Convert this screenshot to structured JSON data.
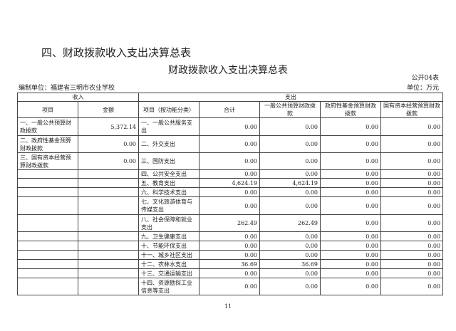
{
  "section_title": "四、财政拨款收入支出决算总表",
  "table_title": "财政拨款收入支出决算总表",
  "form_no": "公开04表",
  "org": "编制单位：福建省三明市农业学校",
  "unit": "单位：万元",
  "group_headers": {
    "income": "收入",
    "expense": "支出"
  },
  "columns": [
    "项目",
    "金额",
    "项目（按功能分类）",
    "合计",
    "一般公共预算财政拨款",
    "政府性基金预算财政拨款",
    "国有资本经营预算财政拨款"
  ],
  "rows": [
    [
      "一、一般公共预算财政拨款",
      "5,372.14",
      "一、一般公共服务支出",
      "0.00",
      "0.00",
      "0.00",
      "0.00"
    ],
    [
      "二、政府性基金预算财政拨款",
      "0.00",
      "二、外交支出",
      "0.00",
      "0.00",
      "0.00",
      "0.00"
    ],
    [
      "三、国有资本经营预算财政拨款",
      "0.00",
      "三、国防支出",
      "0.00",
      "0.00",
      "0.00",
      "0.00"
    ],
    [
      "",
      "",
      "四、公共安全支出",
      "0.00",
      "0.00",
      "0.00",
      "0.00"
    ],
    [
      "",
      "",
      "五、教育支出",
      "4,624.19",
      "4,624.19",
      "0.00",
      "0.00"
    ],
    [
      "",
      "",
      "六、科学技术支出",
      "0.00",
      "0.00",
      "0.00",
      "0.00"
    ],
    [
      "",
      "",
      "七、文化旅游体育与传媒支出",
      "0.00",
      "0.00",
      "0.00",
      "0.00"
    ],
    [
      "",
      "",
      "八、社会保障和就业支出",
      "262.49",
      "262.49",
      "0.00",
      "0.00"
    ],
    [
      "",
      "",
      "九、卫生健康支出",
      "0.00",
      "0.00",
      "0.00",
      "0.00"
    ],
    [
      "",
      "",
      "十、节能环保支出",
      "0.00",
      "0.00",
      "0.00",
      "0.00"
    ],
    [
      "",
      "",
      "十一、城乡社区支出",
      "0.00",
      "0.00",
      "0.00",
      "0.00"
    ],
    [
      "",
      "",
      "十二、农林水支出",
      "36.69",
      "36.69",
      "0.00",
      "0.00"
    ],
    [
      "",
      "",
      "十三、交通运输支出",
      "0.00",
      "0.00",
      "0.00",
      "0.00"
    ],
    [
      "",
      "",
      "十四、资源勘探工业信息等支出",
      "0.00",
      "0.00",
      "0.00",
      "0.00"
    ]
  ],
  "page_number": "11"
}
